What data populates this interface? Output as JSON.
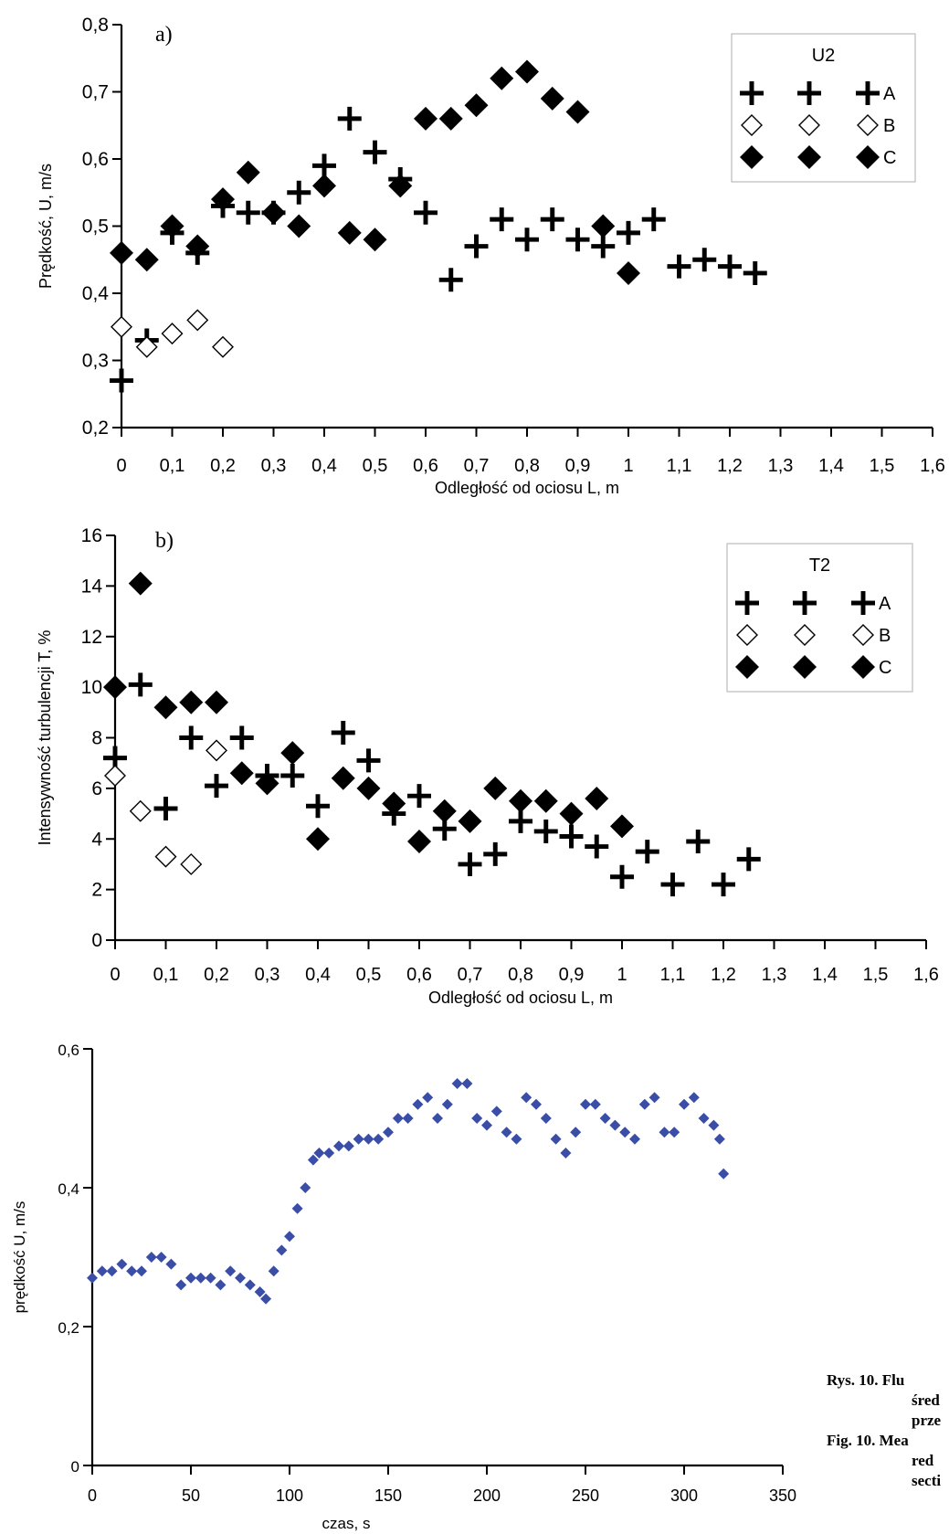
{
  "chart_data": [
    {
      "type": "scatter",
      "panel_label": "a)",
      "xlabel": "Odległość od ociosu L,  m",
      "ylabel": "Prędkość, U, m/s",
      "xlim": [
        0,
        1.6
      ],
      "ylim": [
        0.2,
        0.8
      ],
      "x_ticks": [
        "0",
        "0,1",
        "0,2",
        "0,3",
        "0,4",
        "0,5",
        "0,6",
        "0,7",
        "0,8",
        "0,9",
        "1",
        "1,1",
        "1,2",
        "1,3",
        "1,4",
        "1,5",
        "1,6"
      ],
      "y_ticks": [
        "0,2",
        "0,3",
        "0,4",
        "0,5",
        "0,6",
        "0,7",
        "0,8"
      ],
      "legend": {
        "title": "U2",
        "position": "top-right",
        "entries": [
          "A",
          "B",
          "C"
        ]
      },
      "series": [
        {
          "name": "A",
          "marker": "plus",
          "x": [
            0,
            0.05,
            0.1,
            0.15,
            0.2,
            0.25,
            0.3,
            0.35,
            0.4,
            0.45,
            0.5,
            0.55,
            0.6,
            0.65,
            0.7,
            0.75,
            0.8,
            0.85,
            0.9,
            0.95,
            1.0,
            1.05,
            1.1,
            1.15,
            1.2,
            1.25
          ],
          "y": [
            0.27,
            0.33,
            0.49,
            0.46,
            0.53,
            0.52,
            0.52,
            0.55,
            0.59,
            0.66,
            0.61,
            0.57,
            0.52,
            0.42,
            0.47,
            0.51,
            0.48,
            0.51,
            0.48,
            0.47,
            0.49,
            0.51,
            0.44,
            0.45,
            0.44,
            0.43
          ]
        },
        {
          "name": "B",
          "marker": "diamond-open",
          "x": [
            0,
            0.05,
            0.1,
            0.15,
            0.2
          ],
          "y": [
            0.35,
            0.32,
            0.34,
            0.36,
            0.32
          ]
        },
        {
          "name": "C",
          "marker": "diamond-filled",
          "x": [
            0,
            0.05,
            0.1,
            0.15,
            0.2,
            0.25,
            0.3,
            0.35,
            0.4,
            0.45,
            0.5,
            0.55,
            0.6,
            0.65,
            0.7,
            0.75,
            0.8,
            0.85,
            0.9,
            0.95,
            1.0
          ],
          "y": [
            0.46,
            0.45,
            0.5,
            0.47,
            0.54,
            0.58,
            0.52,
            0.5,
            0.56,
            0.49,
            0.48,
            0.56,
            0.66,
            0.66,
            0.68,
            0.72,
            0.73,
            0.69,
            0.67,
            0.5,
            0.43
          ]
        }
      ]
    },
    {
      "type": "scatter",
      "panel_label": "b)",
      "xlabel": "Odległość od ociosu L,  m",
      "ylabel": "Intensywność turbulencji T,  %",
      "xlim": [
        0,
        1.6
      ],
      "ylim": [
        0,
        16
      ],
      "x_ticks": [
        "0",
        "0,1",
        "0,2",
        "0,3",
        "0,4",
        "0,5",
        "0,6",
        "0,7",
        "0,8",
        "0,9",
        "1",
        "1,1",
        "1,2",
        "1,3",
        "1,4",
        "1,5",
        "1,6"
      ],
      "y_ticks": [
        "0",
        "2",
        "4",
        "6",
        "8",
        "10",
        "12",
        "14",
        "16"
      ],
      "legend": {
        "title": "T2",
        "position": "top-right",
        "entries": [
          "A",
          "B",
          "C"
        ]
      },
      "series": [
        {
          "name": "A",
          "marker": "plus",
          "x": [
            0,
            0.05,
            0.1,
            0.15,
            0.2,
            0.25,
            0.3,
            0.35,
            0.4,
            0.45,
            0.5,
            0.55,
            0.6,
            0.65,
            0.7,
            0.75,
            0.8,
            0.85,
            0.9,
            0.95,
            1.0,
            1.05,
            1.1,
            1.15,
            1.2,
            1.25
          ],
          "y": [
            7.2,
            10.1,
            5.2,
            8.0,
            6.1,
            8.0,
            6.5,
            6.5,
            5.3,
            8.2,
            7.1,
            5.0,
            5.7,
            4.4,
            3.0,
            3.4,
            4.7,
            4.3,
            4.1,
            3.7,
            2.5,
            3.5,
            2.2,
            3.9,
            2.2,
            3.2
          ]
        },
        {
          "name": "B",
          "marker": "diamond-open",
          "x": [
            0,
            0.05,
            0.1,
            0.15,
            0.2
          ],
          "y": [
            6.5,
            5.1,
            3.3,
            3.0,
            7.5
          ]
        },
        {
          "name": "C",
          "marker": "diamond-filled",
          "x": [
            0,
            0.05,
            0.1,
            0.15,
            0.2,
            0.25,
            0.3,
            0.35,
            0.4,
            0.45,
            0.5,
            0.55,
            0.6,
            0.65,
            0.7,
            0.75,
            0.8,
            0.85,
            0.9,
            0.95,
            1.0
          ],
          "y": [
            10.0,
            14.1,
            9.2,
            9.4,
            9.4,
            6.6,
            6.2,
            7.4,
            4.0,
            6.4,
            6.0,
            5.4,
            3.9,
            5.1,
            4.7,
            6.0,
            5.5,
            5.5,
            5.0,
            5.6,
            4.5
          ]
        }
      ]
    },
    {
      "type": "scatter",
      "xlabel": "czas, s",
      "ylabel": "prędkość U, m/s",
      "xlim": [
        0,
        350
      ],
      "ylim": [
        0,
        0.6
      ],
      "x_ticks": [
        "0",
        "50",
        "100",
        "150",
        "200",
        "250",
        "300",
        "350"
      ],
      "y_ticks": [
        "0",
        "0,2",
        "0,4",
        "0,6"
      ],
      "series": [
        {
          "marker": "small-diamond",
          "color": "#3a4ea8",
          "x": [
            0,
            5,
            10,
            15,
            20,
            25,
            30,
            35,
            40,
            45,
            50,
            55,
            60,
            65,
            70,
            75,
            80,
            85,
            88,
            92,
            96,
            100,
            104,
            108,
            112,
            115,
            120,
            125,
            130,
            135,
            140,
            145,
            150,
            155,
            160,
            165,
            170,
            175,
            180,
            185,
            190,
            195,
            200,
            205,
            210,
            215,
            220,
            225,
            230,
            235,
            240,
            245,
            250,
            255,
            260,
            265,
            270,
            275,
            280,
            285,
            290,
            295,
            300,
            305,
            310,
            315,
            318,
            320
          ],
          "y": [
            0.27,
            0.28,
            0.28,
            0.29,
            0.28,
            0.28,
            0.3,
            0.3,
            0.29,
            0.26,
            0.27,
            0.27,
            0.27,
            0.26,
            0.28,
            0.27,
            0.26,
            0.25,
            0.24,
            0.28,
            0.31,
            0.33,
            0.37,
            0.4,
            0.44,
            0.45,
            0.45,
            0.46,
            0.46,
            0.47,
            0.47,
            0.47,
            0.48,
            0.5,
            0.5,
            0.52,
            0.53,
            0.5,
            0.52,
            0.55,
            0.55,
            0.5,
            0.49,
            0.51,
            0.48,
            0.47,
            0.53,
            0.52,
            0.5,
            0.47,
            0.45,
            0.48,
            0.52,
            0.52,
            0.5,
            0.49,
            0.48,
            0.47,
            0.52,
            0.53,
            0.48,
            0.48,
            0.52,
            0.53,
            0.5,
            0.49,
            0.47,
            0.42
          ]
        }
      ]
    }
  ],
  "caption": {
    "lines": [
      "Rys.  10.  Flu",
      "śred",
      "prze",
      "Fig. 10.  Mea",
      "red",
      "secti"
    ]
  }
}
